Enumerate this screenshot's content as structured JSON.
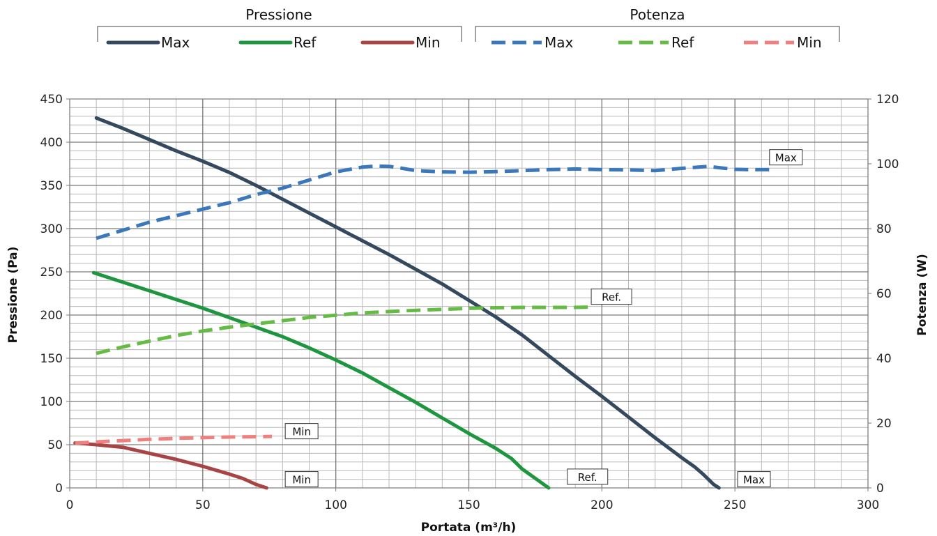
{
  "chart_data": {
    "type": "line",
    "xlabel": "Portata (m³/h)",
    "ylabel_left": "Pressione (Pa)",
    "ylabel_right": "Potenza (W)",
    "xlim": [
      0,
      300
    ],
    "ylim_left": [
      0,
      450
    ],
    "ylim_right": [
      0,
      120
    ],
    "x_ticks": [
      0,
      50,
      100,
      150,
      200,
      250,
      300
    ],
    "y_left_ticks": [
      0,
      50,
      100,
      150,
      200,
      250,
      300,
      350,
      400,
      450
    ],
    "y_right_ticks": [
      0,
      20,
      40,
      60,
      80,
      100,
      120
    ],
    "grid": true,
    "legend_position": "top",
    "legend_groups": [
      {
        "title": "Pressione",
        "items": [
          "Max",
          "Ref",
          "Min"
        ]
      },
      {
        "title": "Potenza",
        "items": [
          "Max",
          "Ref",
          "Min"
        ]
      }
    ],
    "series": [
      {
        "name": "Max",
        "group": "Pressione",
        "axis": "left",
        "style": "solid",
        "color": "#34495e",
        "x": [
          10,
          20,
          30,
          40,
          50,
          60,
          70,
          80,
          90,
          100,
          110,
          120,
          130,
          140,
          150,
          160,
          170,
          180,
          190,
          200,
          210,
          220,
          230,
          235,
          238,
          240,
          242,
          244
        ],
        "y": [
          428,
          416,
          403,
          390,
          378,
          365,
          350,
          334,
          318,
          302,
          286,
          270,
          253,
          236,
          217,
          198,
          177,
          153,
          129,
          106,
          82,
          58,
          35,
          24,
          16,
          10,
          4,
          0
        ]
      },
      {
        "name": "Ref",
        "group": "Pressione",
        "axis": "left",
        "style": "solid",
        "color": "#1e9640",
        "x": [
          9,
          20,
          30,
          40,
          50,
          60,
          70,
          80,
          90,
          100,
          110,
          120,
          130,
          140,
          150,
          160,
          166,
          170,
          175,
          180
        ],
        "y": [
          249,
          238,
          228,
          218,
          208,
          197,
          186,
          175,
          162,
          148,
          133,
          116,
          99,
          81,
          63,
          46,
          34,
          22,
          11,
          0
        ]
      },
      {
        "name": "Min",
        "group": "Pressione",
        "axis": "left",
        "style": "solid",
        "color": "#a94444",
        "x": [
          2,
          10,
          20,
          30,
          40,
          50,
          60,
          65,
          70,
          74
        ],
        "y": [
          52,
          50,
          47,
          40,
          33,
          25,
          16,
          11,
          4,
          0
        ]
      },
      {
        "name": "Max",
        "group": "Potenza",
        "axis": "right",
        "style": "dashed",
        "color": "#3a78bb",
        "x": [
          10,
          20,
          30,
          40,
          50,
          60,
          70,
          80,
          90,
          100,
          110,
          115,
          120,
          125,
          130,
          140,
          150,
          160,
          170,
          180,
          190,
          200,
          210,
          220,
          230,
          240,
          245,
          250,
          255,
          260,
          263
        ],
        "y": [
          77,
          79.5,
          82,
          84,
          86,
          88,
          90.5,
          92.5,
          95,
          97.5,
          99,
          99.3,
          99.2,
          98.6,
          97.9,
          97.5,
          97.4,
          97.6,
          97.9,
          98.2,
          98.4,
          98.2,
          98.1,
          97.9,
          98.6,
          99.2,
          98.7,
          98.3,
          98.2,
          98.2,
          98.2
        ]
      },
      {
        "name": "Ref",
        "group": "Potenza",
        "axis": "right",
        "style": "dashed",
        "color": "#66bb44",
        "x": [
          10,
          20,
          30,
          40,
          50,
          60,
          70,
          80,
          90,
          100,
          110,
          120,
          130,
          140,
          150,
          160,
          170,
          180,
          190,
          196
        ],
        "y": [
          41.5,
          43.5,
          45.3,
          47,
          48.4,
          49.6,
          50.6,
          51.6,
          52.6,
          53.3,
          54,
          54.4,
          54.8,
          55.1,
          55.4,
          55.6,
          55.7,
          55.7,
          55.7,
          55.8
        ]
      },
      {
        "name": "Min",
        "group": "Potenza",
        "axis": "right",
        "style": "dashed",
        "color": "#f08080",
        "x": [
          2,
          10,
          20,
          30,
          40,
          50,
          60,
          70,
          76
        ],
        "y": [
          13.8,
          14.2,
          14.6,
          15,
          15.3,
          15.5,
          15.7,
          15.8,
          15.9
        ]
      }
    ],
    "annotations": [
      {
        "text": "Max",
        "x": 263,
        "y": 102,
        "axis": "right"
      },
      {
        "text": "Ref.",
        "x": 196,
        "y": 59,
        "axis": "right"
      },
      {
        "text": "Min",
        "x": 81,
        "y": 17.5,
        "axis": "right"
      },
      {
        "text": "Min",
        "x": 81,
        "y": 10,
        "axis": "left"
      },
      {
        "text": "Ref.",
        "x": 187,
        "y": 13,
        "axis": "left"
      },
      {
        "text": "Max",
        "x": 251,
        "y": 10,
        "axis": "left"
      }
    ]
  }
}
